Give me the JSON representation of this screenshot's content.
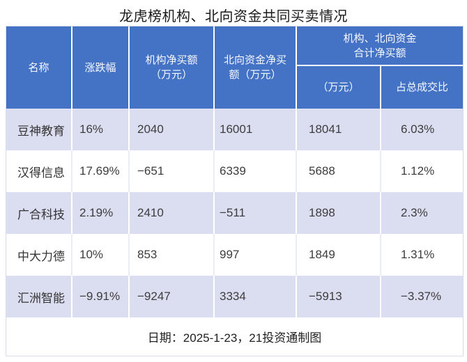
{
  "title": "龙虎榜机构、北向资金共同买卖情况",
  "chart_data": {
    "type": "table",
    "title": "龙虎榜机构、北向资金共同买卖情况",
    "header": {
      "name": "名称",
      "change": "涨跌幅",
      "inst_lines": [
        "机构净买额",
        "（万元）"
      ],
      "north_lines": [
        "北向资金净买",
        "额（万元）"
      ],
      "total_group_lines": [
        "机构、北向资金",
        "合计净买额"
      ],
      "total_wan": "（万元）",
      "total_ratio": "占总成交比"
    },
    "rows": [
      {
        "name": "豆神教育",
        "change": "16%",
        "inst": "2040",
        "north": "16001",
        "total": "18041",
        "ratio": "6.03%"
      },
      {
        "name": "汉得信息",
        "change": "17.69%",
        "inst": "−651",
        "north": "6339",
        "total": "5688",
        "ratio": "1.12%"
      },
      {
        "name": "广合科技",
        "change": "2.19%",
        "inst": "2410",
        "north": "−511",
        "total": "1898",
        "ratio": "2.3%"
      },
      {
        "name": "中大力德",
        "change": "10%",
        "inst": "853",
        "north": "997",
        "total": "1849",
        "ratio": "1.31%"
      },
      {
        "name": "汇洲智能",
        "change": "−9.91%",
        "inst": "−9247",
        "north": "3334",
        "total": "−5913",
        "ratio": "−3.37%"
      }
    ],
    "footer": "日期：2025-1-23，21投资通制图"
  },
  "colors": {
    "header_bg": "#4472C4",
    "header_text": "#FFFFFF",
    "row_alt_bg": "#DBDDF0",
    "row_bg": "#FFFFFF",
    "body_text": "#3D3D3D",
    "grid_line_light": "#EAECF6",
    "outer_border": "#D8DAE8"
  }
}
